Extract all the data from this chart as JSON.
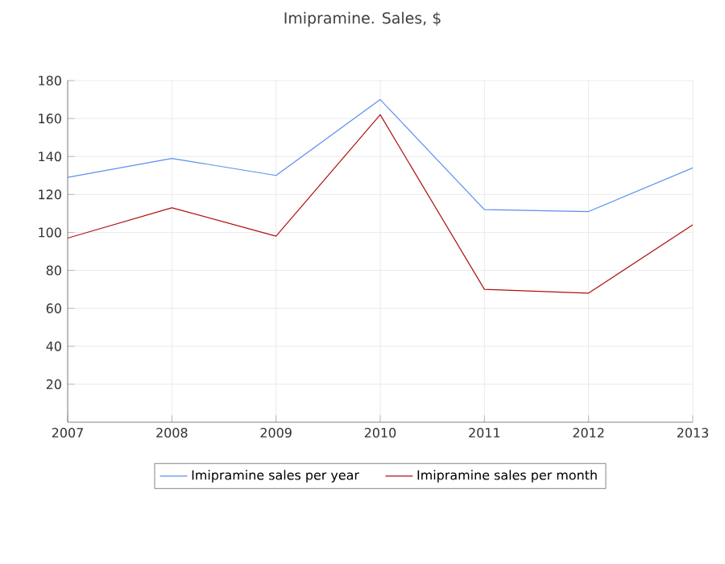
{
  "chart_data": {
    "type": "line",
    "title": "Imipramine. Sales, $",
    "x": [
      2007,
      2008,
      2009,
      2010,
      2011,
      2012,
      2013
    ],
    "series": [
      {
        "name": "Imipramine sales per year",
        "color": "#5b8ff0",
        "values": [
          129,
          139,
          130,
          170,
          112,
          111,
          134
        ]
      },
      {
        "name": "Imipramine sales per month",
        "color": "#b01010",
        "values": [
          97,
          113,
          98,
          162,
          70,
          68,
          104
        ]
      }
    ],
    "xlim": [
      2007,
      2013
    ],
    "xticks": [
      2007,
      2008,
      2009,
      2010,
      2011,
      2012,
      2013
    ],
    "ylim": [
      0,
      180
    ],
    "yticks": [
      20,
      40,
      60,
      80,
      100,
      120,
      140,
      160,
      180
    ],
    "grid": true,
    "legend": "bottom",
    "marker": "none",
    "line_style": "solid"
  }
}
